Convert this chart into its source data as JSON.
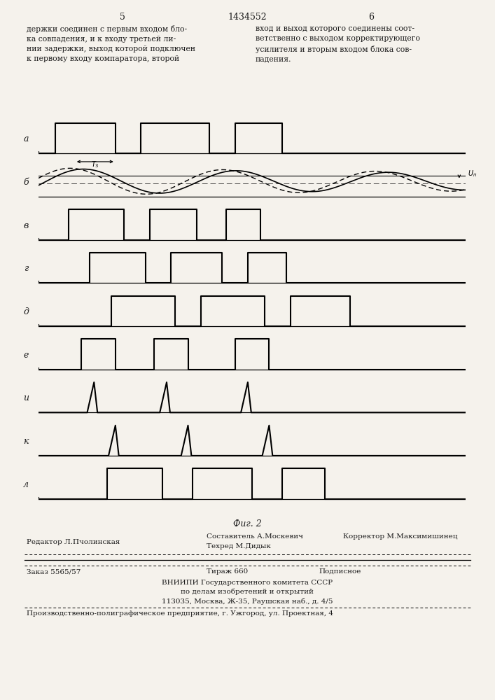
{
  "page_number_left": "5",
  "page_number_center": "1434552",
  "page_number_right": "6",
  "text_left": "держки соединен с первым входом бло-\nка совпадения, и к входу третьей ли-\nнии задержки, выход которой подключен\nк первому входу компаратора, второй",
  "text_right": "вход и выход которого соединены соот-\nветственно с выходом корректирующего\nусилителя и вторым входом блока сов-\nпадения.",
  "fig_label": "Фиг. 2",
  "signal_labels": [
    "а",
    "б",
    "в",
    "г",
    "д",
    "е",
    "и",
    "к",
    "л"
  ],
  "footer_line1_left": "Редактор Л.Пчолинская",
  "footer_line1_center1": "Составитель А.Москевич",
  "footer_line1_center2": "Техред М.Дидык",
  "footer_line1_right": "Корректор М.Максимишинец",
  "footer_line2_left": "Заказ 5565/57",
  "footer_line2_center": "Тираж 660",
  "footer_line2_right": "Подписное",
  "footer_line3": "ВНИИПИ Государственного комитета СССР",
  "footer_line4": "по делам изобретений и открытий",
  "footer_line5": "113035, Москва, Ж-35, Раушская наб., д. 4/5",
  "footer_line6": "Производственно-полиграфическое предприятие, г. Ужгород, ул. Проектная, 4",
  "bg_color": "#f5f2ec",
  "text_color": "#1a1a1a"
}
